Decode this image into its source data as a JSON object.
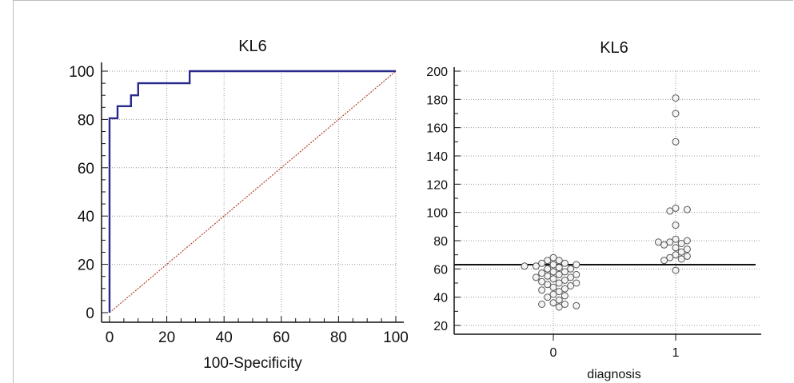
{
  "chart_data": [
    {
      "type": "line",
      "title": "KL6",
      "xlabel": "100-Specificity",
      "ylabel": "",
      "xlim": [
        0,
        100
      ],
      "ylim": [
        0,
        100
      ],
      "xticks": [
        "0",
        "20",
        "40",
        "60",
        "80",
        "100"
      ],
      "yticks": [
        "0",
        "20",
        "40",
        "60",
        "80",
        "100"
      ],
      "grid": true,
      "colors": {
        "roc": "#2a2a8c",
        "reference": "#b2452a"
      },
      "series": [
        {
          "x": [
            0,
            0,
            0,
            0,
            2.8,
            2.8,
            7.5,
            7.5,
            10,
            10,
            28,
            28,
            100
          ],
          "y": [
            0,
            80,
            80.5,
            80.5,
            80.5,
            85.5,
            85.5,
            90,
            90,
            95,
            95,
            100,
            100
          ]
        },
        {
          "x": [
            0,
            100
          ],
          "y": [
            0,
            100
          ]
        }
      ]
    },
    {
      "type": "scatter",
      "title": "KL6",
      "xlabel": "diagnosis",
      "ylabel": "",
      "categories": [
        "0",
        "1"
      ],
      "ylim": [
        20,
        200
      ],
      "yticks": [
        "20",
        "40",
        "60",
        "80",
        "100",
        "120",
        "140",
        "160",
        "180",
        "200"
      ],
      "grid": true,
      "cutoff": 63,
      "series": [
        {
          "category": "0",
          "values": [
            68,
            66,
            66,
            64,
            64,
            63,
            63,
            62,
            62,
            61,
            60,
            60,
            58,
            58,
            57,
            56,
            56,
            55,
            54,
            54,
            53,
            52,
            51,
            50,
            50,
            49,
            48,
            47,
            46,
            45,
            44,
            42,
            41,
            40,
            38,
            36,
            35,
            35,
            34,
            33
          ]
        },
        {
          "category": "1",
          "values": [
            181,
            170,
            150,
            103,
            102,
            101,
            91,
            81,
            80,
            79,
            79,
            78,
            77,
            75,
            74,
            72,
            70,
            69,
            68,
            67,
            66,
            59
          ]
        }
      ]
    }
  ]
}
